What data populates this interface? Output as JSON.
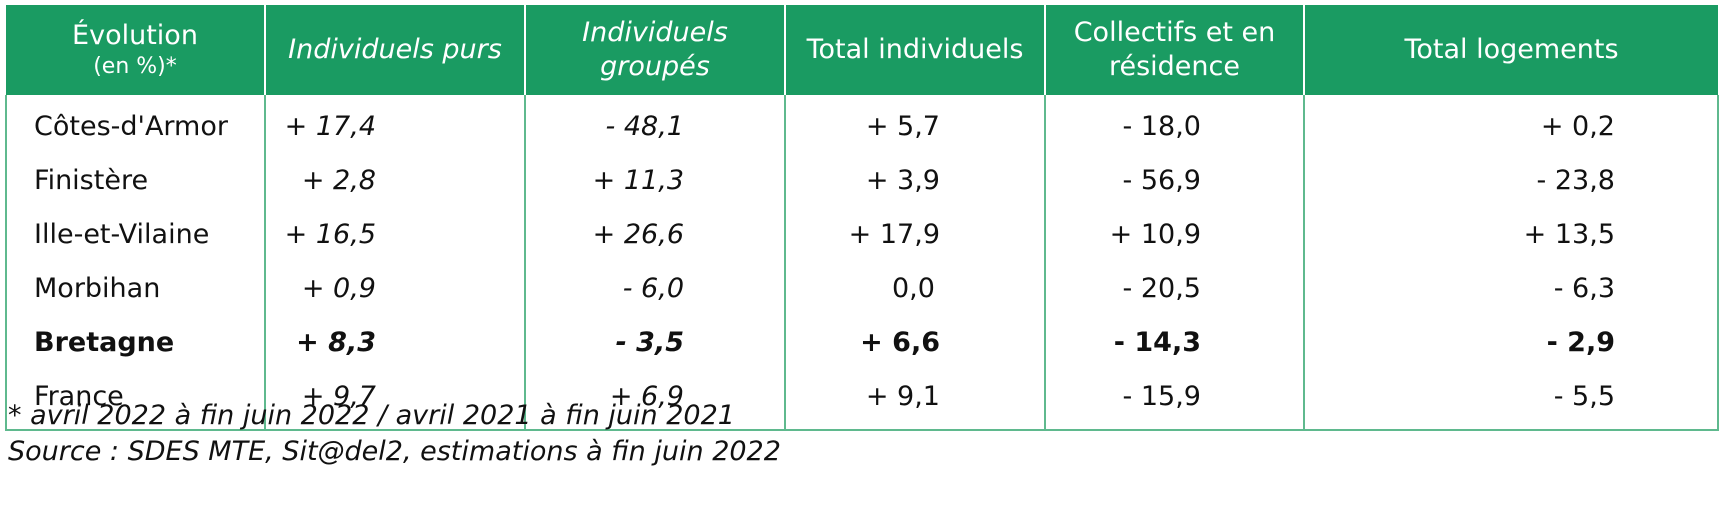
{
  "table": {
    "header": {
      "col0_line1": "Évolution",
      "col0_line2": "(en %)*",
      "col1": "Individuels purs",
      "col2": "Individuels groupés",
      "col3": "Total individuels",
      "col4": "Collectifs et en résidence",
      "col5": "Total logements"
    },
    "rows": [
      {
        "region": "Côtes-d'Armor",
        "individuels_purs": "+ 17,4",
        "individuels_groupes": "- 48,1",
        "total_individuels": "+ 5,7",
        "collectifs": "- 18,0",
        "total_logements": "+ 0,2"
      },
      {
        "region": "Finistère",
        "individuels_purs": "+ 2,8",
        "individuels_groupes": "+ 11,3",
        "total_individuels": "+ 3,9",
        "collectifs": "- 56,9",
        "total_logements": "- 23,8"
      },
      {
        "region": "Ille-et-Vilaine",
        "individuels_purs": "+ 16,5",
        "individuels_groupes": "+ 26,6",
        "total_individuels": "+ 17,9",
        "collectifs": "+ 10,9",
        "total_logements": "+ 13,5"
      },
      {
        "region": "Morbihan",
        "individuels_purs": "+ 0,9",
        "individuels_groupes": "- 6,0",
        "total_individuels": "0,0",
        "collectifs": "- 20,5",
        "total_logements": "- 6,3"
      },
      {
        "region": "Bretagne",
        "individuels_purs": "+ 8,3",
        "individuels_groupes": "- 3,5",
        "total_individuels": "+ 6,6",
        "collectifs": "- 14,3",
        "total_logements": "- 2,9"
      },
      {
        "region": "France",
        "individuels_purs": "+ 9,7",
        "individuels_groupes": "+ 6,9",
        "total_individuels": "+ 9,1",
        "collectifs": "- 15,9",
        "total_logements": "- 5,5"
      }
    ]
  },
  "notes": {
    "period": "* avril 2022 à fin juin 2022 /  avril 2021 à fin juin 2021",
    "source": "Source : SDES MTE, Sit@del2, estimations à fin juin 2022"
  },
  "colors": {
    "header_background": "#1a9b62",
    "header_text": "#ffffff",
    "border": "#5fb98e"
  }
}
